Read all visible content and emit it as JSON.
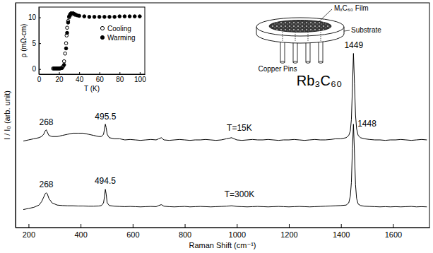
{
  "chart_data": [
    {
      "type": "line",
      "title": "Rb₃C₆₀",
      "x_label": "Raman Shift (cm⁻¹)",
      "y_label": "I / I₀ (arb. unit)",
      "x": [
        180,
        200,
        220,
        240,
        250,
        258,
        264,
        268,
        272,
        278,
        290,
        310,
        330,
        350,
        370,
        390,
        410,
        430,
        450,
        470,
        480,
        488,
        492,
        495,
        498,
        502,
        510,
        530,
        550,
        570,
        590,
        610,
        630,
        650,
        670,
        690,
        700,
        710,
        720,
        740,
        760,
        780,
        800,
        820,
        840,
        860,
        880,
        900,
        920,
        940,
        960,
        980,
        1000,
        1020,
        1040,
        1060,
        1080,
        1100,
        1120,
        1140,
        1160,
        1180,
        1200,
        1220,
        1240,
        1260,
        1280,
        1300,
        1320,
        1340,
        1360,
        1380,
        1400,
        1420,
        1430,
        1436,
        1440,
        1444,
        1448,
        1452,
        1456,
        1460,
        1466,
        1475,
        1490,
        1510,
        1530,
        1550,
        1570,
        1590,
        1610,
        1630,
        1650,
        1670,
        1690,
        1710,
        1730
      ],
      "series": [
        {
          "color": "#000000",
          "values": [
            3.85,
            3.9,
            3.95,
            4.0,
            4.05,
            4.15,
            4.3,
            4.35,
            4.25,
            4.1,
            4.05,
            4.05,
            4.1,
            4.15,
            4.2,
            4.2,
            4.2,
            4.15,
            4.1,
            4.05,
            4.05,
            4.15,
            4.4,
            4.6,
            4.45,
            4.15,
            4.0,
            3.95,
            3.95,
            3.9,
            3.92,
            3.9,
            3.88,
            3.9,
            3.92,
            3.9,
            3.95,
            4.0,
            3.9,
            3.88,
            3.9,
            3.92,
            3.9,
            3.88,
            3.9,
            3.9,
            3.92,
            3.9,
            3.88,
            3.9,
            3.95,
            4.0,
            3.9,
            3.88,
            3.9,
            3.92,
            3.9,
            3.9,
            3.92,
            3.9,
            3.88,
            3.9,
            3.9,
            3.92,
            3.9,
            3.88,
            3.9,
            3.92,
            3.9,
            3.9,
            3.92,
            3.95,
            3.95,
            4.0,
            4.1,
            4.3,
            4.8,
            6.2,
            7.75,
            6.4,
            5.0,
            4.4,
            4.1,
            4.0,
            3.95,
            3.92,
            3.9,
            3.9,
            3.88,
            3.9,
            3.9,
            3.92,
            3.9,
            3.88,
            3.9,
            3.92,
            3.9
          ]
        },
        {
          "color": "#000000",
          "values": [
            0.8,
            0.85,
            0.9,
            1.0,
            1.15,
            1.35,
            1.5,
            1.55,
            1.5,
            1.3,
            1.1,
            1.0,
            0.98,
            0.97,
            0.97,
            0.96,
            0.96,
            0.95,
            0.95,
            0.96,
            0.98,
            1.1,
            1.4,
            1.7,
            1.5,
            1.1,
            0.98,
            0.95,
            0.94,
            0.93,
            0.94,
            0.93,
            0.92,
            0.93,
            0.94,
            0.93,
            0.98,
            1.02,
            0.95,
            0.93,
            0.92,
            0.93,
            0.94,
            0.92,
            0.93,
            0.94,
            0.93,
            0.92,
            0.93,
            0.94,
            0.95,
            0.97,
            0.94,
            0.93,
            0.92,
            0.93,
            0.94,
            0.93,
            0.92,
            0.93,
            0.94,
            0.93,
            0.92,
            0.93,
            0.94,
            0.93,
            0.92,
            0.93,
            0.94,
            0.95,
            0.96,
            0.97,
            0.98,
            1.0,
            1.1,
            1.4,
            2.0,
            3.5,
            4.6,
            3.3,
            1.9,
            1.3,
            1.05,
            0.98,
            0.95,
            0.94,
            0.93,
            0.92,
            0.93,
            0.92,
            0.93,
            0.92,
            0.93,
            0.94,
            0.92,
            0.93,
            0.92
          ]
        }
      ],
      "xlim": [
        150,
        1740
      ],
      "xticks": [
        200,
        400,
        600,
        800,
        1000,
        1200,
        1400,
        1600
      ],
      "ylim": [
        0,
        10
      ],
      "tick_labels": "x",
      "grid": false,
      "annotations": [
        {
          "text": "268",
          "x": 268,
          "y": 4.55
        },
        {
          "text": "495.5",
          "x": 495.5,
          "y": 4.8
        },
        {
          "text": "1449",
          "x": 1449,
          "y": 8
        },
        {
          "text": "T=15K",
          "x": 1010,
          "y": 4.3
        },
        {
          "text": "268",
          "x": 268,
          "y": 1.8
        },
        {
          "text": "494.5",
          "x": 494.5,
          "y": 1.95
        },
        {
          "text": "1448",
          "x": 1500,
          "y": 4.5
        },
        {
          "text": "T=300K",
          "x": 1010,
          "y": 1.35
        }
      ]
    },
    {
      "type": "scatter",
      "x_label": "T (K)",
      "y_label": "ρ (mΩ-cm)",
      "series": [
        {
          "name": "Cooling",
          "color": "#000000",
          "marker": "circle-open",
          "x": [
            14,
            16,
            18,
            20,
            22,
            24,
            25,
            26,
            27,
            27.5,
            28,
            29,
            30,
            31,
            33,
            36
          ],
          "values": [
            0.1,
            0.1,
            0.1,
            0.1,
            0.2,
            0.5,
            1.5,
            3,
            5,
            6.5,
            8,
            9.3,
            10,
            10.4,
            10.6,
            10.5
          ]
        },
        {
          "name": "Warming",
          "color": "#000000",
          "marker": "circle",
          "x": [
            15,
            17,
            19,
            21,
            23,
            25,
            27,
            28,
            29,
            30,
            31,
            32,
            34,
            36,
            38,
            40,
            45,
            50,
            55,
            60,
            65,
            70,
            75,
            80,
            85,
            90,
            95,
            100
          ],
          "values": [
            0.1,
            0.1,
            0.1,
            0.1,
            0.2,
            0.8,
            4,
            7,
            9,
            10.2,
            10.6,
            10.8,
            10.8,
            10.6,
            10.4,
            10.3,
            10.2,
            10.1,
            10.1,
            10.1,
            10.1,
            10.1,
            10.1,
            10.2,
            10.2,
            10.2,
            10.2,
            10.2
          ]
        }
      ],
      "xlim": [
        0,
        105
      ],
      "xticks": [
        0,
        20,
        40,
        60,
        80,
        100
      ],
      "ylim": [
        -1,
        12
      ],
      "yticks": [
        0,
        5,
        10
      ],
      "grid": false,
      "legend": "right"
    }
  ],
  "diagram": {
    "labels": {
      "film": "MₓC₆₀ Film",
      "substrate": "Substrate",
      "pins": "Copper Pins"
    }
  }
}
